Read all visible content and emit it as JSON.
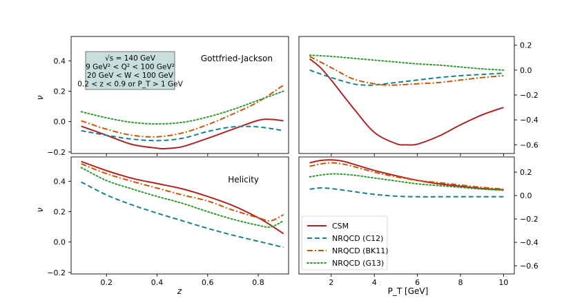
{
  "chart_data": {
    "type": "line",
    "series_styles": [
      {
        "name": "CSM",
        "color": "#b22222",
        "dash": "solid"
      },
      {
        "name": "NRQCD (C12)",
        "color": "#17808c",
        "dash": "dashed"
      },
      {
        "name": "NRQCD (BK11)",
        "color": "#cc5500",
        "dash": "dashdot"
      },
      {
        "name": "NRQCD (G13)",
        "color": "#2e9a2e",
        "dash": "dotted"
      }
    ],
    "legend": {
      "placement": "lower-left of bottom-right panel",
      "entries": [
        "CSM",
        "NRQCD (C12)",
        "NRQCD (BK11)",
        "NRQCD (G13)"
      ]
    },
    "info_box": {
      "lines": [
        "√s = 140 GeV",
        "9 GeV² < Q² < 100 GeV²",
        "20 GeV < W < 100 GeV",
        "0.2 < z < 0.9 or P_T > 1 GeV"
      ]
    },
    "panels": [
      {
        "id": "top-left",
        "label": "Gottfried-Jackson",
        "xlabel": "",
        "ylabel": "ν",
        "xlim": [
          0.06,
          0.92
        ],
        "ylim": [
          -0.21,
          0.56
        ],
        "yticks": [
          -0.2,
          0.0,
          0.2,
          0.4
        ],
        "ytick_labels": [
          "−0.2",
          "0.0",
          "0.2",
          "0.4"
        ],
        "ytick_side": "left",
        "xticks": [
          0.2,
          0.4,
          0.6,
          0.8
        ],
        "show_xtick_labels": false,
        "series": [
          {
            "name": "CSM",
            "x": [
              0.1,
              0.2,
              0.3,
              0.4,
              0.43,
              0.5,
              0.6,
              0.7,
              0.8,
              0.85,
              0.9
            ],
            "y": [
              -0.03,
              -0.09,
              -0.15,
              -0.175,
              -0.178,
              -0.165,
              -0.11,
              -0.05,
              0.008,
              0.015,
              0.005
            ]
          },
          {
            "name": "NRQCD (C12)",
            "x": [
              0.1,
              0.2,
              0.3,
              0.4,
              0.5,
              0.6,
              0.7,
              0.8,
              0.9
            ],
            "y": [
              -0.06,
              -0.09,
              -0.115,
              -0.125,
              -0.11,
              -0.065,
              -0.035,
              -0.035,
              -0.06
            ]
          },
          {
            "name": "NRQCD (BK11)",
            "x": [
              0.1,
              0.2,
              0.3,
              0.4,
              0.5,
              0.6,
              0.7,
              0.8,
              0.9
            ],
            "y": [
              0.005,
              -0.05,
              -0.09,
              -0.1,
              -0.075,
              -0.02,
              0.05,
              0.13,
              0.24
            ]
          },
          {
            "name": "NRQCD (G13)",
            "x": [
              0.1,
              0.2,
              0.3,
              0.4,
              0.5,
              0.6,
              0.7,
              0.8,
              0.9
            ],
            "y": [
              0.065,
              0.025,
              -0.005,
              -0.015,
              -0.005,
              0.03,
              0.08,
              0.14,
              0.2
            ]
          }
        ]
      },
      {
        "id": "top-right",
        "label": "",
        "xlabel": "",
        "ylabel": "",
        "xlim": [
          0.5,
          10.5
        ],
        "ylim": [
          -0.67,
          0.27
        ],
        "yticks": [
          -0.6,
          -0.4,
          -0.2,
          0.0,
          0.2
        ],
        "ytick_labels": [
          "−0.6",
          "−0.4",
          "−0.2",
          "0.0",
          "0.2"
        ],
        "ytick_side": "right",
        "xticks": [
          2,
          4,
          6,
          8,
          10
        ],
        "show_xtick_labels": false,
        "series": [
          {
            "name": "CSM",
            "x": [
              1,
              1.5,
              2,
              3,
              4,
              5,
              5.5,
              6,
              7,
              8,
              9,
              10
            ],
            "y": [
              0.09,
              0.02,
              -0.08,
              -0.3,
              -0.5,
              -0.59,
              -0.6,
              -0.595,
              -0.53,
              -0.44,
              -0.36,
              -0.3
            ]
          },
          {
            "name": "NRQCD (C12)",
            "x": [
              1,
              2,
              3,
              3.5,
              4,
              5,
              6,
              7,
              8,
              9,
              10
            ],
            "y": [
              0.0,
              -0.06,
              -0.11,
              -0.12,
              -0.12,
              -0.1,
              -0.08,
              -0.06,
              -0.045,
              -0.035,
              -0.025
            ]
          },
          {
            "name": "NRQCD (BK11)",
            "x": [
              1,
              2,
              3,
              4,
              4.5,
              5,
              6,
              7,
              8,
              9,
              10
            ],
            "y": [
              0.11,
              0.02,
              -0.07,
              -0.11,
              -0.12,
              -0.12,
              -0.11,
              -0.1,
              -0.08,
              -0.06,
              -0.045
            ]
          },
          {
            "name": "NRQCD (G13)",
            "x": [
              1,
              2,
              3,
              4,
              5,
              6,
              7,
              8,
              9,
              10
            ],
            "y": [
              0.12,
              0.11,
              0.095,
              0.08,
              0.065,
              0.05,
              0.04,
              0.025,
              0.01,
              0.0
            ]
          }
        ]
      },
      {
        "id": "bottom-left",
        "label": "Helicity",
        "xlabel": "z",
        "ylabel": "ν",
        "xlim": [
          0.06,
          0.92
        ],
        "ylim": [
          -0.21,
          0.56
        ],
        "yticks": [
          -0.2,
          0.0,
          0.2,
          0.4
        ],
        "ytick_labels": [
          "−0.2",
          "0.0",
          "0.2",
          "0.4"
        ],
        "ytick_side": "left",
        "xticks": [
          0.2,
          0.4,
          0.6,
          0.8
        ],
        "xtick_labels": [
          "0.2",
          "0.4",
          "0.6",
          "0.8"
        ],
        "show_xtick_labels": true,
        "series": [
          {
            "name": "CSM",
            "x": [
              0.1,
              0.2,
              0.3,
              0.4,
              0.5,
              0.6,
              0.7,
              0.8,
              0.85,
              0.9
            ],
            "y": [
              0.53,
              0.47,
              0.42,
              0.385,
              0.35,
              0.3,
              0.24,
              0.16,
              0.11,
              0.055
            ]
          },
          {
            "name": "NRQCD (C12)",
            "x": [
              0.1,
              0.2,
              0.3,
              0.4,
              0.5,
              0.6,
              0.7,
              0.8,
              0.9
            ],
            "y": [
              0.395,
              0.31,
              0.245,
              0.19,
              0.14,
              0.09,
              0.045,
              0.005,
              -0.035
            ]
          },
          {
            "name": "NRQCD (BK11)",
            "x": [
              0.1,
              0.2,
              0.3,
              0.4,
              0.5,
              0.6,
              0.7,
              0.8,
              0.85,
              0.9
            ],
            "y": [
              0.515,
              0.45,
              0.4,
              0.355,
              0.31,
              0.27,
              0.21,
              0.16,
              0.14,
              0.18
            ]
          },
          {
            "name": "NRQCD (G13)",
            "x": [
              0.1,
              0.2,
              0.3,
              0.4,
              0.5,
              0.6,
              0.7,
              0.8,
              0.85,
              0.9
            ],
            "y": [
              0.49,
              0.405,
              0.35,
              0.3,
              0.255,
              0.2,
              0.15,
              0.11,
              0.1,
              0.14
            ]
          }
        ]
      },
      {
        "id": "bottom-right",
        "label": "",
        "xlabel": "P_T [GeV]",
        "ylabel": "",
        "xlim": [
          0.5,
          10.5
        ],
        "ylim": [
          -0.67,
          0.33
        ],
        "yticks": [
          -0.6,
          -0.4,
          -0.2,
          0.0,
          0.2
        ],
        "ytick_labels": [
          "−0.6",
          "−0.4",
          "−0.2",
          "0.0",
          "0.2"
        ],
        "ytick_side": "right",
        "xticks": [
          2,
          4,
          6,
          8,
          10
        ],
        "xtick_labels": [
          "2",
          "4",
          "6",
          "8",
          "10"
        ],
        "show_xtick_labels": true,
        "series": [
          {
            "name": "CSM",
            "x": [
              1,
              1.5,
              2,
              2.5,
              3,
              4,
              5,
              6,
              7,
              8,
              9,
              10
            ],
            "y": [
              0.28,
              0.3,
              0.305,
              0.295,
              0.27,
              0.215,
              0.17,
              0.13,
              0.1,
              0.08,
              0.06,
              0.05
            ]
          },
          {
            "name": "NRQCD (C12)",
            "x": [
              1,
              1.5,
              2,
              3,
              4,
              5,
              6,
              7,
              8,
              9,
              10
            ],
            "y": [
              0.055,
              0.065,
              0.06,
              0.035,
              0.01,
              -0.005,
              -0.01,
              -0.01,
              -0.01,
              -0.01,
              -0.01
            ]
          },
          {
            "name": "NRQCD (BK11)",
            "x": [
              1,
              1.5,
              2,
              2.5,
              3,
              4,
              5,
              6,
              7,
              8,
              9,
              10
            ],
            "y": [
              0.25,
              0.27,
              0.28,
              0.27,
              0.25,
              0.2,
              0.16,
              0.13,
              0.11,
              0.09,
              0.07,
              0.055
            ]
          },
          {
            "name": "NRQCD (G13)",
            "x": [
              1,
              2,
              3,
              4,
              5,
              6,
              7,
              8,
              9,
              10
            ],
            "y": [
              0.16,
              0.185,
              0.175,
              0.15,
              0.125,
              0.1,
              0.085,
              0.07,
              0.055,
              0.045
            ]
          }
        ]
      }
    ]
  }
}
